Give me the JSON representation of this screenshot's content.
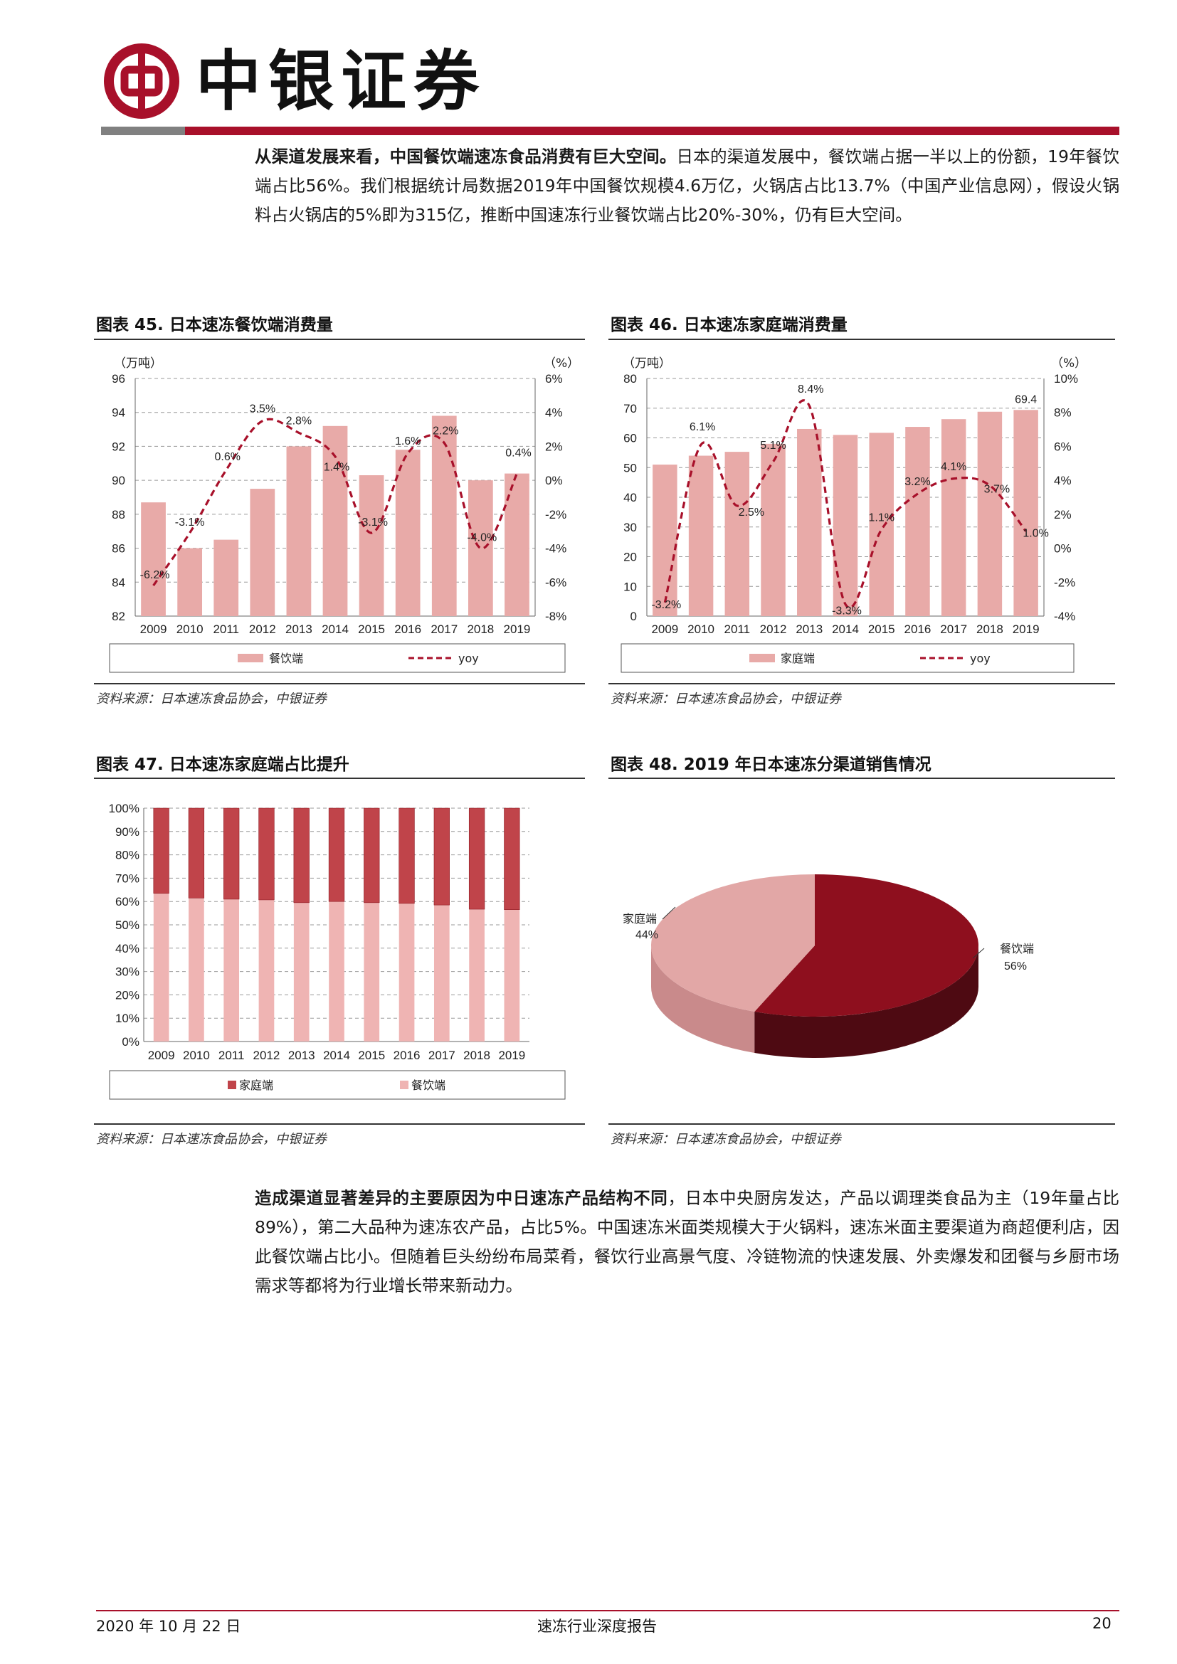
{
  "header": {
    "brand": "中银证券",
    "colors": {
      "accent": "#a8102a",
      "gray": "#808080"
    }
  },
  "intro": {
    "lead": "从渠道发展来看，中国餐饮端速冻食品消费有巨大空间。",
    "body": "日本的渠道发展中，餐饮端占据一半以上的份额，19年餐饮端占比56%。我们根据统计局数据2019年中国餐饮规模4.6万亿，火锅店占比13.7%（中国产业信息网），假设火锅料占火锅店的5%即为315亿，推断中国速冻行业餐饮端占比20%-30%，仍有巨大空间。"
  },
  "figures": {
    "f45": {
      "title": "图表 45. 日本速冻餐饮端消费量",
      "source": "资料来源：日本速冻食品协会，中银证券"
    },
    "f46": {
      "title": "图表 46. 日本速冻家庭端消费量",
      "source": "资料来源：日本速冻食品协会，中银证券"
    },
    "f47": {
      "title": "图表 47. 日本速冻家庭端占比提升",
      "source": "资料来源：日本速冻食品协会，中银证券"
    },
    "f48": {
      "title": "图表 48. 2019 年日本速冻分渠道销售情况",
      "source": "资料来源：日本速冻食品协会，中银证券"
    }
  },
  "chart_data": [
    {
      "id": "f45",
      "type": "bar",
      "categories": [
        "2009",
        "2010",
        "2011",
        "2012",
        "2013",
        "2014",
        "2015",
        "2016",
        "2017",
        "2018",
        "2019"
      ],
      "series": [
        {
          "name": "餐饮端",
          "type": "bar",
          "axis": "left",
          "color": "#e8aaa8",
          "values": [
            88.7,
            86.0,
            86.5,
            89.5,
            92.0,
            93.2,
            90.3,
            91.8,
            93.8,
            90.0,
            90.4
          ]
        },
        {
          "name": "yoy",
          "type": "line",
          "axis": "right",
          "color": "#a8102a",
          "values": [
            -6.2,
            -3.1,
            0.6,
            3.5,
            2.8,
            1.4,
            -3.1,
            1.6,
            2.2,
            -4.0,
            0.4
          ],
          "labels": [
            "-6.2%",
            "-3.1%",
            "0.6%",
            "3.5%",
            "2.8%",
            "1.4%",
            "-3.1%",
            "1.6%",
            "2.2%",
            "-4.0%",
            "0.4%"
          ]
        }
      ],
      "y_left": {
        "unit": "（万吨）",
        "ticks": [
          "96",
          "94",
          "92",
          "90",
          "88",
          "86",
          "84",
          "82"
        ],
        "range": [
          82,
          96
        ]
      },
      "y_right": {
        "unit": "（%）",
        "ticks": [
          "6%",
          "4%",
          "2%",
          "0%",
          "-2%",
          "-4%",
          "-6%",
          "-8%"
        ],
        "range": [
          -8,
          6
        ]
      },
      "grid": true,
      "legend_position": "bottom"
    },
    {
      "id": "f46",
      "type": "bar",
      "categories": [
        "2009",
        "2010",
        "2011",
        "2012",
        "2013",
        "2014",
        "2015",
        "2016",
        "2017",
        "2018",
        "2019"
      ],
      "series": [
        {
          "name": "家庭端",
          "type": "bar",
          "axis": "left",
          "color": "#e8aaa8",
          "values": [
            51.0,
            54.0,
            55.3,
            58.0,
            63.0,
            61.0,
            61.7,
            63.7,
            66.3,
            68.8,
            69.4
          ],
          "labels": [
            "",
            "",
            "",
            "",
            "",
            "",
            "",
            "",
            "",
            "",
            "69.4"
          ]
        },
        {
          "name": "yoy",
          "type": "line",
          "axis": "right",
          "color": "#a8102a",
          "values": [
            -3.2,
            6.1,
            2.5,
            5.1,
            8.4,
            -3.3,
            1.1,
            3.2,
            4.1,
            3.7,
            1.0
          ],
          "labels": [
            "-3.2%",
            "6.1%",
            "2.5%",
            "5.1%",
            "8.4%",
            "-3.3%",
            "1.1%",
            "3.2%",
            "4.1%",
            "3.7%",
            "1.0%"
          ]
        }
      ],
      "y_left": {
        "unit": "（万吨）",
        "ticks": [
          "80",
          "70",
          "60",
          "50",
          "40",
          "30",
          "20",
          "10",
          "0"
        ],
        "range": [
          0,
          80
        ]
      },
      "y_right": {
        "unit": "（%）",
        "ticks": [
          "10%",
          "8%",
          "6%",
          "4%",
          "2%",
          "0%",
          "-2%",
          "-4%"
        ],
        "range": [
          -4,
          10
        ]
      },
      "grid": true,
      "legend_position": "bottom"
    },
    {
      "id": "f47",
      "type": "bar",
      "stacked": true,
      "categories": [
        "2009",
        "2010",
        "2011",
        "2012",
        "2013",
        "2014",
        "2015",
        "2016",
        "2017",
        "2018",
        "2019"
      ],
      "series": [
        {
          "name": "家庭端",
          "color": "#c0444a",
          "values": [
            36.5,
            38.5,
            39.0,
            39.3,
            40.5,
            40.0,
            40.5,
            40.8,
            41.5,
            43.3,
            43.5
          ]
        },
        {
          "name": "餐饮端",
          "color": "#efb4b3",
          "values": [
            63.5,
            61.5,
            61.0,
            60.7,
            59.5,
            60.0,
            59.5,
            59.2,
            58.5,
            56.7,
            56.5
          ]
        }
      ],
      "y_ticks": [
        "100%",
        "90%",
        "80%",
        "70%",
        "60%",
        "50%",
        "40%",
        "30%",
        "20%",
        "10%",
        "0%"
      ],
      "ylim": [
        0,
        100
      ],
      "grid": true,
      "legend_position": "bottom"
    },
    {
      "id": "f48",
      "type": "pie",
      "slices": [
        {
          "name": "餐饮端",
          "value": 56,
          "label": "56%",
          "color": "#8e0f1e"
        },
        {
          "name": "家庭端",
          "value": 44,
          "label": "44%",
          "color": "#e2a7a6"
        }
      ]
    }
  ],
  "closing": {
    "lead": "造成渠道显著差异的主要原因为中日速冻产品结构不同",
    "body": "，日本中央厨房发达，产品以调理类食品为主（19年量占比89%），第二大品种为速冻农产品，占比5%。中国速冻米面类规模大于火锅料，速冻米面主要渠道为商超便利店，因此餐饮端占比小。但随着巨头纷纷布局菜肴，餐饮行业高景气度、冷链物流的快速发展、外卖爆发和团餐与乡厨市场需求等都将为行业增长带来新动力。"
  },
  "footer": {
    "date": "2020 年 10 月 22 日",
    "doc": "速冻行业深度报告",
    "page": "20"
  }
}
